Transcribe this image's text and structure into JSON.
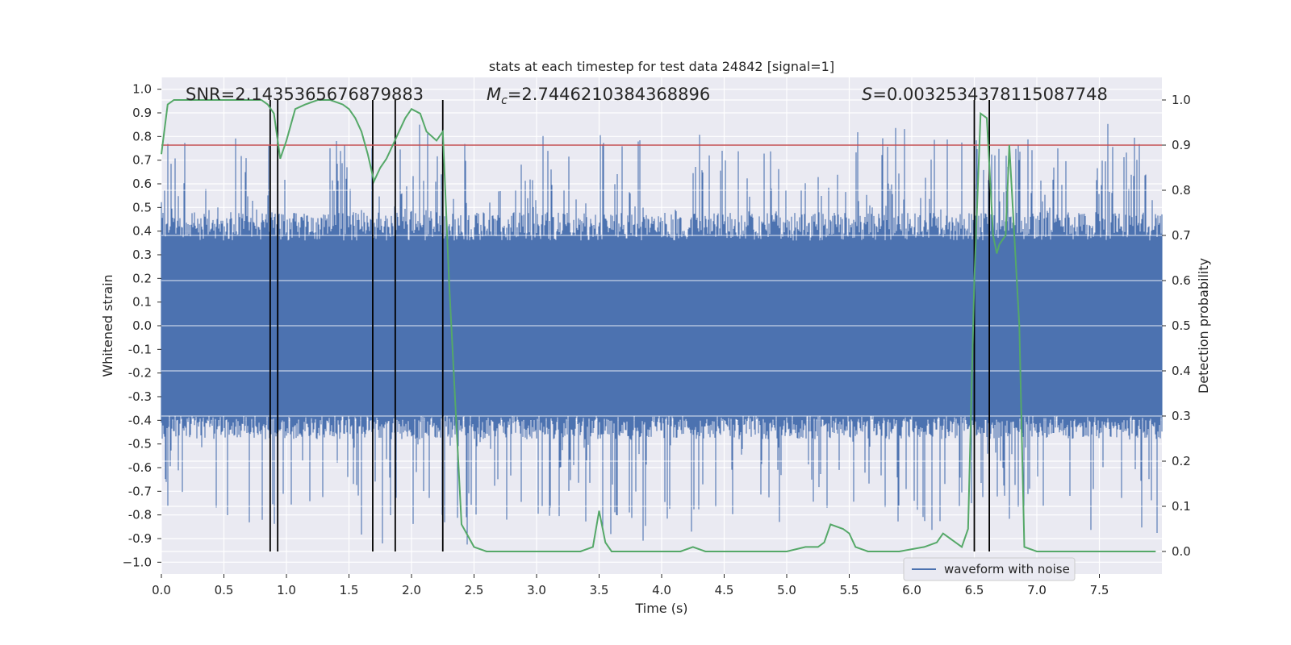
{
  "chart_data": {
    "type": "line",
    "title": "stats at each timestep for test data 24842 [signal=1]",
    "xlabel": "Time (s)",
    "ylabel_left": "Whitened strain",
    "ylabel_right": "Detection probability",
    "xlim": [
      0,
      8
    ],
    "ylim_left": [
      -1.05,
      1.05
    ],
    "ylim_right": [
      -0.05,
      1.05
    ],
    "x_ticks": [
      "0.0",
      "0.5",
      "1.0",
      "1.5",
      "2.0",
      "2.5",
      "3.0",
      "3.5",
      "4.0",
      "4.5",
      "5.0",
      "5.5",
      "6.0",
      "6.5",
      "7.0",
      "7.5"
    ],
    "x_tick_values": [
      0,
      0.5,
      1,
      1.5,
      2,
      2.5,
      3,
      3.5,
      4,
      4.5,
      5,
      5.5,
      6,
      6.5,
      7,
      7.5
    ],
    "left_ticks": [
      "1.0",
      "0.9",
      "0.8",
      "0.7",
      "0.6",
      "0.5",
      "0.4",
      "0.3",
      "0.2",
      "0.1",
      "0.0",
      "-0.1",
      "-0.2",
      "-0.3",
      "-0.4",
      "-0.5",
      "-0.6",
      "-0.7",
      "-0.8",
      "-0.9",
      "−1.0"
    ],
    "left_tick_values": [
      1.0,
      0.9,
      0.8,
      0.7,
      0.6,
      0.5,
      0.4,
      0.3,
      0.2,
      0.1,
      0.0,
      -0.1,
      -0.2,
      -0.3,
      -0.4,
      -0.5,
      -0.6,
      -0.7,
      -0.8,
      -0.9,
      -1.0
    ],
    "right_ticks": [
      "1.0",
      "0.9",
      "0.8",
      "0.7",
      "0.6",
      "0.5",
      "0.4",
      "0.3",
      "0.2",
      "0.1",
      "0.0"
    ],
    "right_tick_values": [
      1.0,
      0.9,
      0.8,
      0.7,
      0.6,
      0.5,
      0.4,
      0.3,
      0.2,
      0.1,
      0.0
    ],
    "annotations": {
      "snr": "SNR=2.1435365676879883",
      "mc_symbol": "M",
      "mc_sub": "c",
      "mc_value": "=2.7446210384368896",
      "s_symbol": "S",
      "s_value": "=0.0032534378115087748"
    },
    "threshold": 0.9,
    "threshold_color": "#c44e52",
    "vertical_markers": [
      0.87,
      0.93,
      1.69,
      1.87,
      2.25,
      6.5,
      6.62
    ],
    "legend": {
      "label": "waveform with noise",
      "placement": "lower-right"
    },
    "series": [
      {
        "name": "waveform with noise",
        "axis": "left",
        "color": "#4c72b0",
        "envelope_note": "dense noise waveform, approx range -1.0 to 0.95"
      },
      {
        "name": "detection probability",
        "axis": "right",
        "color": "#55a868",
        "x": [
          0.0,
          0.05,
          0.1,
          0.2,
          0.3,
          0.5,
          0.7,
          0.8,
          0.85,
          0.9,
          0.95,
          1.0,
          1.07,
          1.15,
          1.25,
          1.35,
          1.45,
          1.5,
          1.55,
          1.6,
          1.65,
          1.7,
          1.75,
          1.8,
          1.85,
          1.9,
          1.95,
          2.0,
          2.07,
          2.12,
          2.2,
          2.25,
          2.3,
          2.4,
          2.5,
          2.6,
          2.8,
          3.0,
          3.2,
          3.35,
          3.45,
          3.5,
          3.55,
          3.6,
          3.7,
          3.8,
          4.0,
          4.15,
          4.25,
          4.35,
          4.5,
          4.6,
          4.7,
          4.8,
          5.0,
          5.15,
          5.25,
          5.3,
          5.35,
          5.45,
          5.5,
          5.55,
          5.65,
          5.75,
          5.9,
          6.1,
          6.2,
          6.25,
          6.3,
          6.35,
          6.4,
          6.45,
          6.5,
          6.55,
          6.6,
          6.65,
          6.68,
          6.7,
          6.75,
          6.78,
          6.82,
          6.86,
          6.9,
          7.0,
          7.05,
          7.1,
          7.2,
          7.4,
          7.6,
          7.75,
          7.9,
          7.95
        ],
        "y": [
          0.88,
          0.99,
          1.0,
          1.0,
          1.0,
          1.0,
          1.0,
          1.0,
          0.99,
          0.97,
          0.87,
          0.91,
          0.98,
          0.99,
          1.0,
          1.0,
          0.99,
          0.98,
          0.96,
          0.93,
          0.88,
          0.82,
          0.85,
          0.87,
          0.9,
          0.93,
          0.96,
          0.98,
          0.97,
          0.93,
          0.91,
          0.93,
          0.6,
          0.06,
          0.01,
          0.0,
          0.0,
          0.0,
          0.0,
          0.0,
          0.01,
          0.09,
          0.02,
          0.0,
          0.0,
          0.0,
          0.0,
          0.0,
          0.01,
          0.0,
          0.0,
          0.0,
          0.0,
          0.0,
          0.0,
          0.01,
          0.01,
          0.02,
          0.06,
          0.05,
          0.04,
          0.01,
          0.0,
          0.0,
          0.0,
          0.01,
          0.02,
          0.04,
          0.03,
          0.02,
          0.01,
          0.05,
          0.6,
          0.97,
          0.96,
          0.7,
          0.66,
          0.68,
          0.7,
          0.9,
          0.7,
          0.5,
          0.01,
          0.0,
          0.0,
          0.0,
          0.0,
          0.0,
          0.0,
          0.0,
          0.0,
          0.0
        ]
      }
    ]
  }
}
